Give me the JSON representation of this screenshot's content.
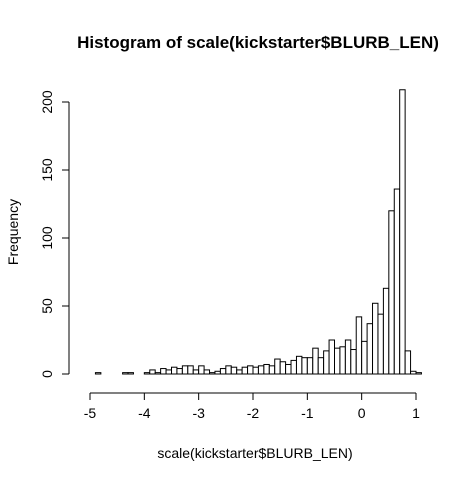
{
  "chart_data": {
    "type": "bar",
    "title": "Histogram of scale(kickstarter$BLURB_LEN)",
    "xlabel": "scale(kickstarter$BLURB_LEN)",
    "ylabel": "Frequency",
    "xlim": [
      -4.9,
      1.1
    ],
    "ylim": [
      0,
      210
    ],
    "xticks": [
      -5,
      -4,
      -3,
      -2,
      -1,
      0,
      1
    ],
    "yticks": [
      0,
      50,
      100,
      150,
      200
    ],
    "bin_width": 0.1,
    "bins_start": [
      -4.9,
      -4.8,
      -4.7,
      -4.6,
      -4.5,
      -4.4,
      -4.3,
      -4.2,
      -4.1,
      -4.0,
      -3.9,
      -3.8,
      -3.7,
      -3.6,
      -3.5,
      -3.4,
      -3.3,
      -3.2,
      -3.1,
      -3.0,
      -2.9,
      -2.8,
      -2.7,
      -2.6,
      -2.5,
      -2.4,
      -2.3,
      -2.2,
      -2.1,
      -2.0,
      -1.9,
      -1.8,
      -1.7,
      -1.6,
      -1.5,
      -1.4,
      -1.3,
      -1.2,
      -1.1,
      -1.0,
      -0.9,
      -0.8,
      -0.7,
      -0.6,
      -0.5,
      -0.4,
      -0.3,
      -0.2,
      -0.1,
      0.0,
      0.1,
      0.2,
      0.3,
      0.4,
      0.5,
      0.6,
      0.7,
      0.8,
      0.9,
      1.0
    ],
    "values": [
      1,
      0,
      0,
      0,
      0,
      1,
      1,
      0,
      0,
      1,
      3,
      1,
      4,
      3,
      5,
      4,
      6,
      6,
      3,
      6,
      3,
      1,
      2,
      4,
      6,
      5,
      3,
      5,
      6,
      5,
      6,
      7,
      6,
      11,
      9,
      7,
      10,
      13,
      12,
      12,
      19,
      12,
      17,
      25,
      19,
      20,
      25,
      18,
      42,
      24,
      37,
      52,
      44,
      63,
      120,
      136,
      209,
      17,
      2,
      1
    ]
  }
}
